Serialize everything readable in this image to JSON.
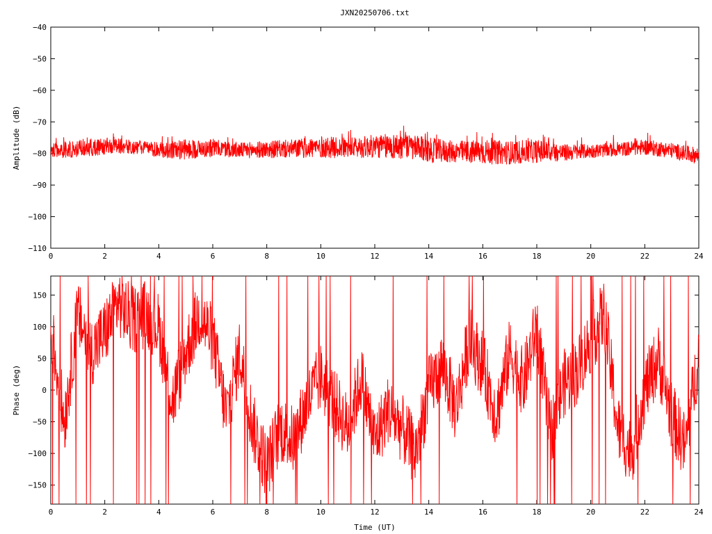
{
  "chart_data": [
    {
      "type": "line",
      "title": "JXN20250706.txt",
      "xlabel": "",
      "ylabel": "Amplitude (dB)",
      "xlim": [
        0,
        24
      ],
      "ylim": [
        -110,
        -40
      ],
      "xticks": [
        0,
        2,
        4,
        6,
        8,
        10,
        12,
        14,
        16,
        18,
        20,
        22,
        24
      ],
      "yticks": [
        -40,
        -50,
        -60,
        -70,
        -80,
        -90,
        -100,
        -110
      ],
      "ytick_labels": [
        "−40",
        "−50",
        "−60",
        "−70",
        "−80",
        "−90",
        "−100",
        "−110"
      ],
      "color": "#ff0000",
      "envelope": {
        "x": [
          0,
          0.5,
          1,
          1.5,
          2,
          2.5,
          3,
          3.5,
          4,
          5,
          6,
          7,
          8,
          9,
          10,
          11,
          12,
          13,
          14,
          15,
          16,
          17,
          18,
          19,
          20,
          21,
          22,
          23,
          23.5,
          24
        ],
        "upper": [
          -77,
          -76,
          -76,
          -75.5,
          -75,
          -75,
          -76,
          -76,
          -76.5,
          -75.5,
          -75.5,
          -76.5,
          -76,
          -75.5,
          -74.5,
          -75,
          -74,
          -73.5,
          -75,
          -76,
          -75.5,
          -76,
          -75.5,
          -77,
          -77,
          -76.5,
          -75.5,
          -76.5,
          -77.5,
          -78
        ],
        "lower": [
          -82,
          -81.5,
          -81.5,
          -81,
          -80.5,
          -80,
          -80.5,
          -80.5,
          -81.5,
          -82,
          -81,
          -81.5,
          -81.5,
          -81.5,
          -81.5,
          -81.5,
          -81.5,
          -82,
          -83,
          -83,
          -83.5,
          -83.5,
          -83,
          -82.5,
          -81.5,
          -81,
          -80.5,
          -81.5,
          -82.5,
          -83.5
        ]
      }
    },
    {
      "type": "line",
      "title": "",
      "xlabel": "Time (UT)",
      "ylabel": "Phase (deg)",
      "xlim": [
        0,
        24
      ],
      "ylim": [
        -180,
        180
      ],
      "xticks": [
        0,
        2,
        4,
        6,
        8,
        10,
        12,
        14,
        16,
        18,
        20,
        22,
        24
      ],
      "yticks": [
        150,
        100,
        50,
        0,
        -50,
        -100,
        -150
      ],
      "ytick_labels": [
        "150",
        "100",
        "50",
        "0",
        "−50",
        "−100",
        "−150"
      ],
      "color": "#ff0000",
      "trend": {
        "x": [
          0,
          0.5,
          1,
          1.5,
          2,
          2.5,
          3,
          3.5,
          4,
          4.5,
          5,
          5.5,
          6,
          6.5,
          7,
          7.5,
          8,
          8.5,
          9,
          9.5,
          10,
          10.5,
          11,
          11.5,
          12,
          12.5,
          13,
          13.5,
          14,
          14.5,
          15,
          15.5,
          16,
          16.5,
          17,
          17.5,
          18,
          18.5,
          19,
          19.5,
          20,
          20.5,
          21,
          21.5,
          22,
          22.5,
          23,
          23.5,
          24
        ],
        "y": [
          100,
          -50,
          120,
          60,
          90,
          140,
          110,
          120,
          100,
          -20,
          60,
          120,
          80,
          -40,
          60,
          -60,
          -120,
          -60,
          -80,
          -20,
          20,
          -20,
          -60,
          20,
          -80,
          -30,
          -60,
          -100,
          0,
          40,
          -30,
          80,
          40,
          -40,
          60,
          10,
          100,
          -70,
          10,
          30,
          80,
          120,
          -60,
          -100,
          0,
          50,
          -40,
          -90,
          60
        ]
      }
    }
  ]
}
